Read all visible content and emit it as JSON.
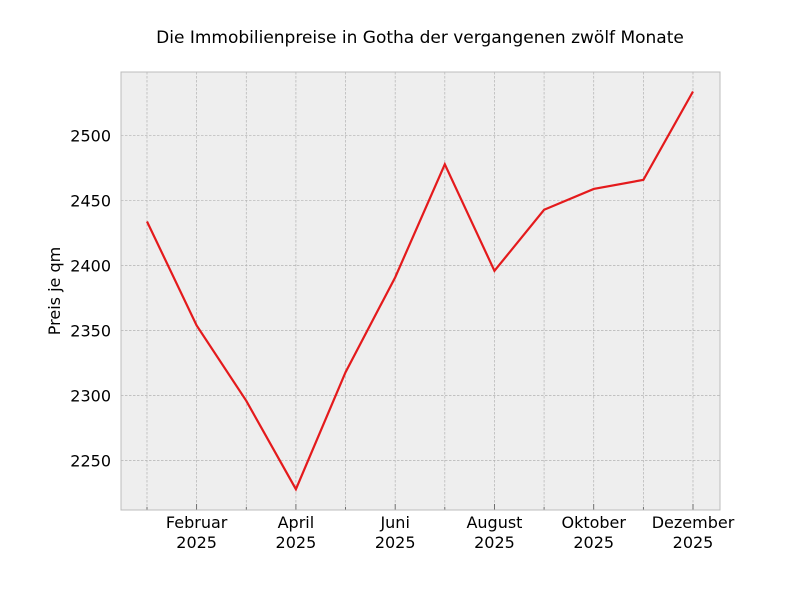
{
  "chart_data": {
    "type": "line",
    "title": "Die Immobilienpreise in Gotha der vergangenen zwölf Monate",
    "y_label": "Preis je qm",
    "categories": [
      null,
      "Februar\n2025",
      null,
      "April\n2025",
      null,
      "Juni\n2025",
      null,
      "August\n2025",
      null,
      "Oktober\n2025",
      null,
      "Dezember\n2025"
    ],
    "series": [
      {
        "name": "Preis je qm",
        "color": "#e41a1c",
        "values": [
          2434,
          2354,
          2296,
          2228,
          2318,
          2391,
          2478,
          2396,
          2443,
          2459,
          2466,
          2534
        ]
      }
    ],
    "ylim": [
      2212,
      2549
    ],
    "yticks": [
      2250,
      2300,
      2350,
      2400,
      2450,
      2500
    ],
    "grid": true
  }
}
